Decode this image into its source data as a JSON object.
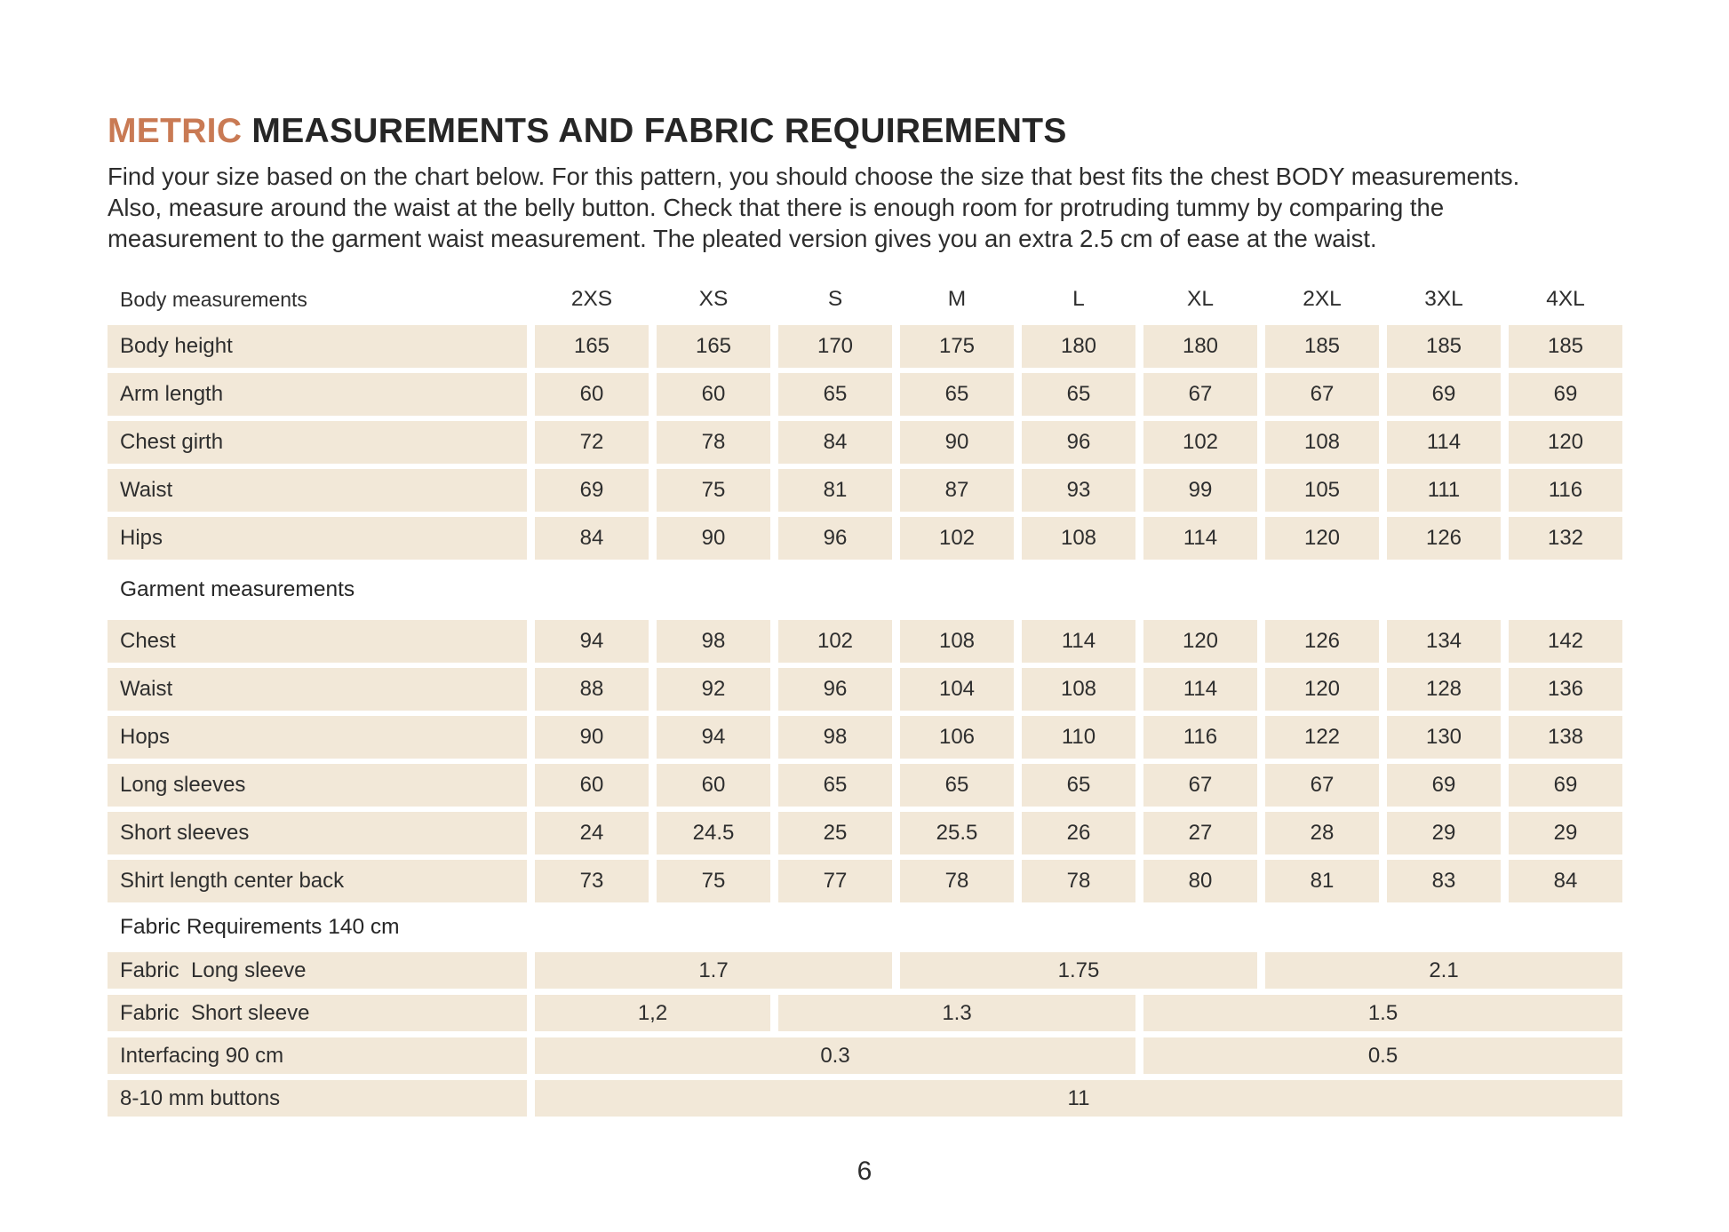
{
  "header": {
    "title_accent": "METRIC",
    "title_rest": " MEASUREMENTS AND FABRIC REQUIREMENTS",
    "intro_lines": [
      "Find your size based on the chart below. For this pattern, you should choose the size that best fits the chest BODY measurements.",
      "Also, measure around the waist at the belly button. Check that there is enough room for protruding tummy by comparing the",
      "measurement to the garment waist measurement. The pleated version gives you an extra 2.5 cm of ease at the waist."
    ]
  },
  "table": {
    "size_header_label": "Body measurements",
    "sizes": [
      "2XS",
      "XS",
      "S",
      "M",
      "L",
      "XL",
      "2XL",
      "3XL",
      "4XL"
    ],
    "sections": [
      {
        "title": "",
        "compact": false,
        "rows": [
          {
            "label": "Body height",
            "cells": [
              "165",
              "165",
              "170",
              "175",
              "180",
              "180",
              "185",
              "185",
              "185"
            ]
          },
          {
            "label": "Arm length",
            "cells": [
              "60",
              "60",
              "65",
              "65",
              "65",
              "67",
              "67",
              "69",
              "69"
            ]
          },
          {
            "label": "Chest girth",
            "cells": [
              "72",
              "78",
              "84",
              "90",
              "96",
              "102",
              "108",
              "114",
              "120"
            ]
          },
          {
            "label": "Waist",
            "cells": [
              "69",
              "75",
              "81",
              "87",
              "93",
              "99",
              "105",
              "111",
              "116"
            ]
          },
          {
            "label": "Hips",
            "cells": [
              "84",
              "90",
              "96",
              "102",
              "108",
              "114",
              "120",
              "126",
              "132"
            ]
          }
        ]
      },
      {
        "title": "Garment measurements",
        "compact": false,
        "rows": [
          {
            "label": "Chest",
            "cells": [
              "94",
              "98",
              "102",
              "108",
              "114",
              "120",
              "126",
              "134",
              "142"
            ]
          },
          {
            "label": "Waist",
            "cells": [
              "88",
              "92",
              "96",
              "104",
              "108",
              "114",
              "120",
              "128",
              "136"
            ]
          },
          {
            "label": "Hops",
            "cells": [
              "90",
              "94",
              "98",
              "106",
              "110",
              "116",
              "122",
              "130",
              "138"
            ]
          },
          {
            "label": "Long sleeves",
            "cells": [
              "60",
              "60",
              "65",
              "65",
              "65",
              "67",
              "67",
              "69",
              "69"
            ]
          },
          {
            "label": "Short sleeves",
            "cells": [
              "24",
              "24.5",
              "25",
              "25.5",
              "26",
              "27",
              "28",
              "29",
              "29"
            ]
          },
          {
            "label": "Shirt length center back",
            "cells": [
              "73",
              "75",
              "77",
              "78",
              "78",
              "80",
              "81",
              "83",
              "84"
            ]
          }
        ]
      },
      {
        "title": "Fabric Requirements 140 cm",
        "compact": true,
        "rows": [
          {
            "label": "Fabric  Long sleeve",
            "cells": [
              {
                "text": "1.7",
                "span": 3
              },
              {
                "text": "1.75",
                "span": 3
              },
              {
                "text": "2.1",
                "span": 3
              }
            ]
          },
          {
            "label": "Fabric  Short sleeve",
            "cells": [
              {
                "text": "1,2",
                "span": 2
              },
              {
                "text": "1.3",
                "span": 3
              },
              {
                "text": "1.5",
                "span": 4
              }
            ]
          },
          {
            "label": "Interfacing 90 cm",
            "cells": [
              {
                "text": "0.3",
                "span": 5
              },
              {
                "text": "0.5",
                "span": 4
              }
            ]
          },
          {
            "label": "8-10 mm buttons",
            "cells": [
              {
                "text": "11",
                "span": 9
              }
            ]
          }
        ]
      }
    ]
  },
  "footer": {
    "page_number": "6"
  },
  "colors": {
    "accent": "#C97A54",
    "row_bg": "#F2E8D8",
    "text": "#2B2B2B"
  }
}
